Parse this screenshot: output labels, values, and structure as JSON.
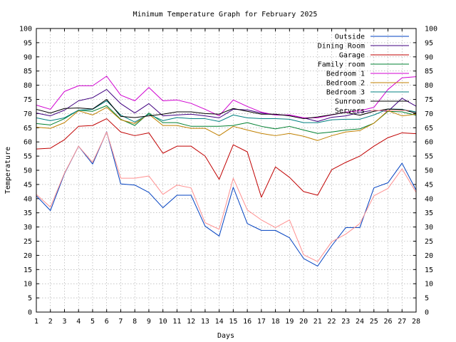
{
  "chart_data": {
    "type": "line",
    "title": "Minimum Temperature Graph for February 2025",
    "xlabel": "Days",
    "ylabel": "Temperature",
    "xlim": [
      1,
      28
    ],
    "ylim": [
      0,
      100
    ],
    "x_ticks": [
      1,
      2,
      3,
      4,
      5,
      6,
      7,
      8,
      9,
      10,
      11,
      12,
      13,
      14,
      15,
      16,
      17,
      18,
      19,
      20,
      21,
      22,
      23,
      24,
      25,
      26,
      27,
      28
    ],
    "y_ticks": [
      0,
      5,
      10,
      15,
      20,
      25,
      30,
      35,
      40,
      45,
      50,
      55,
      60,
      65,
      70,
      75,
      80,
      85,
      90,
      95,
      100
    ],
    "grid": true,
    "legend_position": "top-right",
    "x": [
      1,
      2,
      3,
      4,
      5,
      6,
      7,
      8,
      9,
      10,
      11,
      12,
      13,
      14,
      15,
      16,
      17,
      18,
      19,
      20,
      21,
      22,
      23,
      24,
      25,
      26,
      27,
      28
    ],
    "series": [
      {
        "name": "Outside",
        "color": "#0040c0",
        "values": [
          41.0,
          35.8,
          48.8,
          58.5,
          52.2,
          63.6,
          45.2,
          44.8,
          42.2,
          36.8,
          41.2,
          41.2,
          30.3,
          26.8,
          44.0,
          31.2,
          28.8,
          28.8,
          26.2,
          18.9,
          16.2,
          23.4,
          29.8,
          29.8,
          43.8,
          45.6,
          52.5,
          43.0
        ]
      },
      {
        "name": "Dining Room",
        "color": "#400080",
        "values": [
          70.2,
          69.2,
          71.2,
          74.5,
          75.6,
          78.5,
          73.5,
          70.2,
          73.5,
          69.2,
          69.5,
          69.8,
          69.2,
          68.5,
          71.5,
          71.3,
          70.2,
          69.5,
          69.5,
          68.5,
          67.2,
          68.7,
          69.2,
          70.4,
          71.2,
          70.8,
          75.4,
          72.6
        ]
      },
      {
        "name": "Garage",
        "color": "#c00000",
        "values": [
          57.5,
          57.8,
          60.8,
          65.5,
          65.8,
          68.2,
          63.5,
          62.2,
          63.2,
          56.0,
          58.5,
          58.5,
          55.0,
          46.8,
          59.0,
          56.5,
          40.5,
          51.2,
          47.5,
          42.5,
          41.2,
          50.2,
          52.8,
          55.0,
          58.5,
          61.5,
          63.2,
          62.9
        ]
      },
      {
        "name": "Family room",
        "color": "#008030",
        "values": [
          66.5,
          66.0,
          68.2,
          71.2,
          70.8,
          72.8,
          68.0,
          65.8,
          70.2,
          66.8,
          66.8,
          65.5,
          65.5,
          65.5,
          65.8,
          66.8,
          65.5,
          64.6,
          65.5,
          64.2,
          63.0,
          63.5,
          64.2,
          64.6,
          66.6,
          70.8,
          70.6,
          69.4
        ]
      },
      {
        "name": "Bedroom 1",
        "color": "#d000d0",
        "values": [
          73.0,
          71.5,
          77.8,
          79.8,
          79.8,
          83.2,
          76.5,
          74.5,
          79.2,
          74.5,
          74.8,
          73.6,
          71.5,
          69.2,
          74.8,
          72.5,
          70.5,
          69.5,
          69.5,
          68.5,
          68.5,
          69.5,
          70.5,
          71.0,
          72.2,
          78.5,
          82.6,
          83.0
        ]
      },
      {
        "name": "Bedroom 2",
        "color": "#c08000",
        "values": [
          65.2,
          64.8,
          66.8,
          71.0,
          69.5,
          72.2,
          67.8,
          66.5,
          69.8,
          65.8,
          65.8,
          64.8,
          64.8,
          62.2,
          65.5,
          64.2,
          63.0,
          62.2,
          63.0,
          62.0,
          60.5,
          62.2,
          63.5,
          64.0,
          66.6,
          71.0,
          69.2,
          69.8
        ]
      },
      {
        "name": "Bedroom 3",
        "color": "#008080",
        "values": [
          68.5,
          67.5,
          68.5,
          71.2,
          71.5,
          74.5,
          69.5,
          67.0,
          69.8,
          67.5,
          68.6,
          68.2,
          68.2,
          67.2,
          69.5,
          68.5,
          68.2,
          68.2,
          68.0,
          66.8,
          66.8,
          67.8,
          68.0,
          68.0,
          69.5,
          71.6,
          71.5,
          70.6
        ]
      },
      {
        "name": "Sunroom",
        "color": "#000000",
        "values": [
          71.5,
          70.2,
          71.8,
          72.0,
          71.6,
          75.0,
          69.0,
          68.6,
          69.2,
          69.8,
          70.6,
          70.6,
          70.0,
          69.8,
          71.8,
          70.8,
          69.8,
          69.8,
          69.2,
          68.2,
          68.8,
          69.6,
          70.4,
          69.4,
          70.8,
          71.6,
          71.4,
          70.2
        ]
      },
      {
        "name": "Servers",
        "color": "#ff9090",
        "values": [
          41.5,
          37.0,
          49.0,
          58.5,
          52.8,
          63.5,
          47.2,
          47.2,
          48.0,
          41.5,
          44.8,
          43.8,
          31.5,
          29.2,
          47.2,
          36.0,
          32.5,
          29.8,
          32.5,
          20.2,
          17.8,
          24.8,
          27.5,
          31.2,
          41.0,
          43.6,
          50.5,
          42.2
        ]
      }
    ]
  }
}
